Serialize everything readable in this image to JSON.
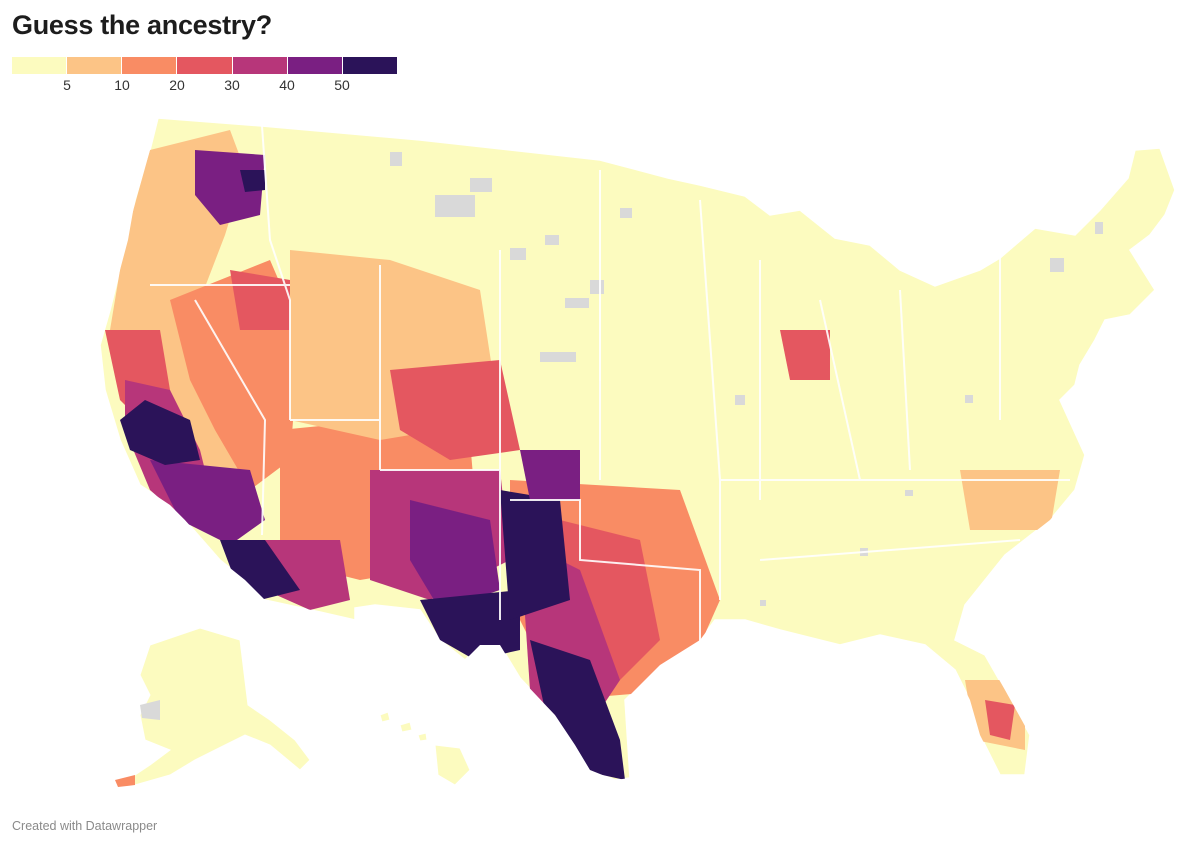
{
  "title": "Guess the ancestry?",
  "legend": {
    "colors": [
      "#fcfbbf",
      "#fcc486",
      "#f98c64",
      "#e45760",
      "#b7367a",
      "#7a1f82",
      "#2b1359"
    ],
    "ticks": [
      "5",
      "10",
      "20",
      "30",
      "40",
      "50"
    ]
  },
  "no_data_color": "#d9d9d9",
  "footer": "Created with Datawrapper"
}
